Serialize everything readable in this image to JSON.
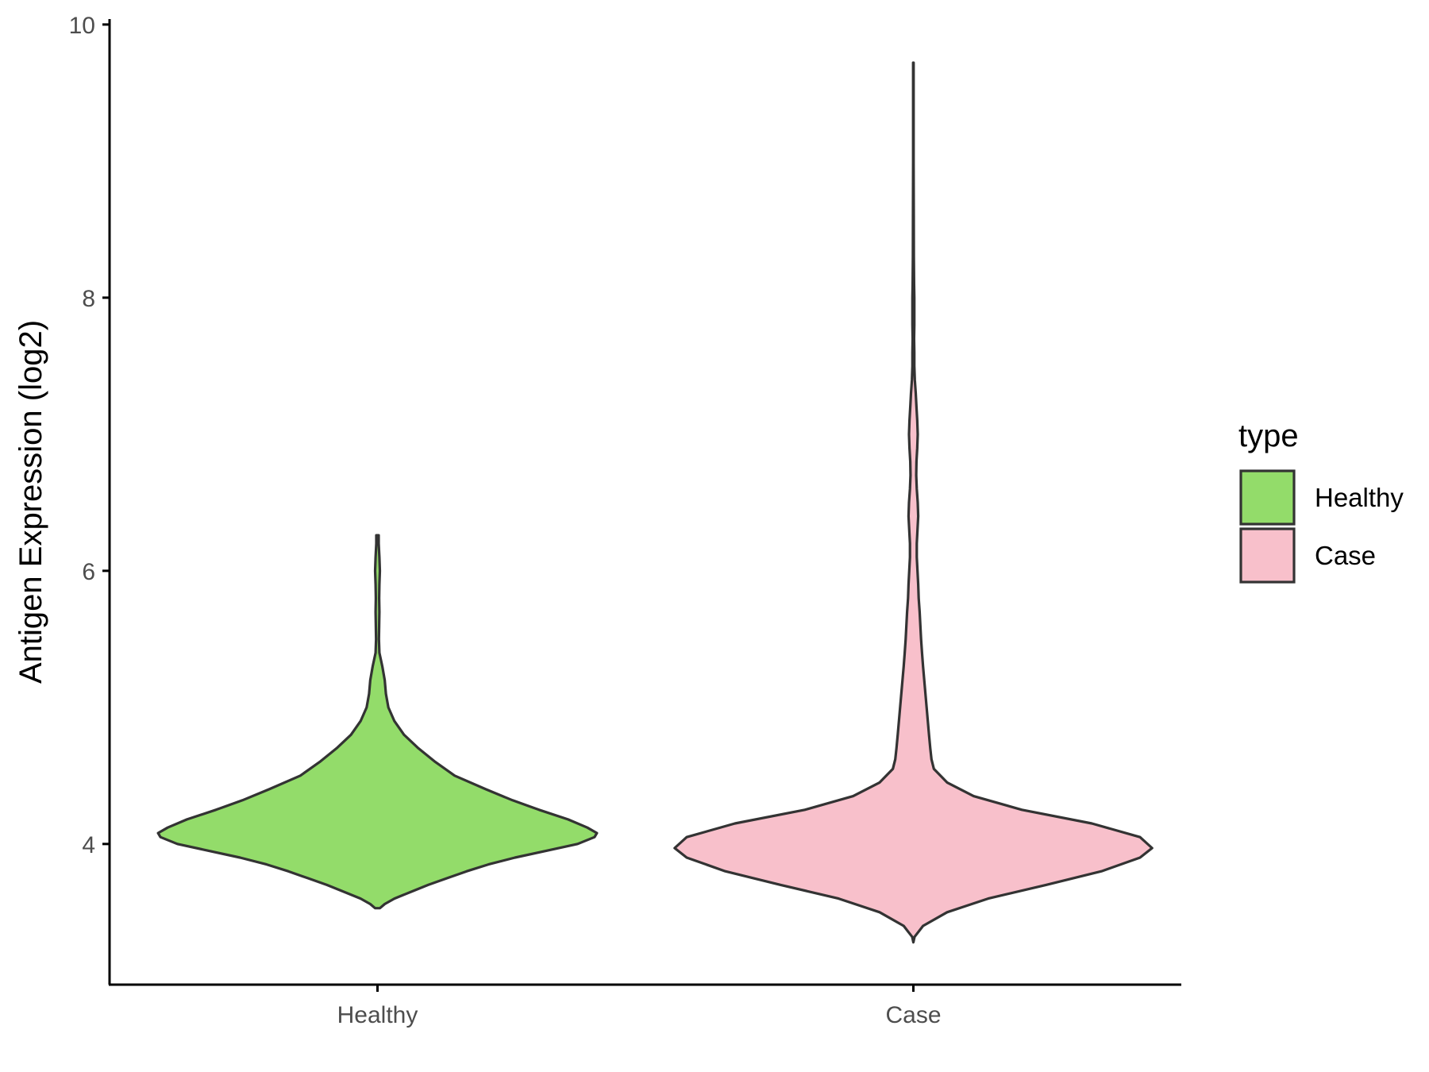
{
  "chart_data": {
    "type": "violin",
    "ylabel": "Antigen Expression (log2)",
    "xlabel": "",
    "categories": [
      "Healthy",
      "Case"
    ],
    "yticks": [
      4,
      6,
      8,
      10
    ],
    "ylim": [
      2.97,
      10.04
    ],
    "grid": false,
    "legend": {
      "title": "type",
      "position": "right",
      "entries": [
        {
          "label": "Healthy",
          "color": "#93DC6A"
        },
        {
          "label": "Case",
          "color": "#F8C0CB"
        }
      ]
    },
    "series": [
      {
        "category": "Healthy",
        "color": "#93DC6A",
        "density": [
          [
            3.53,
            0.01
          ],
          [
            3.56,
            0.03
          ],
          [
            3.6,
            0.07
          ],
          [
            3.65,
            0.14
          ],
          [
            3.7,
            0.21
          ],
          [
            3.75,
            0.29
          ],
          [
            3.8,
            0.37
          ],
          [
            3.85,
            0.46
          ],
          [
            3.9,
            0.57
          ],
          [
            3.95,
            0.7
          ],
          [
            4.0,
            0.83
          ],
          [
            4.05,
            0.9
          ],
          [
            4.08,
            0.91
          ],
          [
            4.12,
            0.87
          ],
          [
            4.18,
            0.79
          ],
          [
            4.25,
            0.67
          ],
          [
            4.32,
            0.56
          ],
          [
            4.4,
            0.45
          ],
          [
            4.5,
            0.32
          ],
          [
            4.6,
            0.24
          ],
          [
            4.7,
            0.17
          ],
          [
            4.8,
            0.11
          ],
          [
            4.9,
            0.07
          ],
          [
            5.0,
            0.045
          ],
          [
            5.1,
            0.035
          ],
          [
            5.2,
            0.03
          ],
          [
            5.3,
            0.02
          ],
          [
            5.4,
            0.008
          ],
          [
            5.5,
            0.006
          ],
          [
            5.6,
            0.007
          ],
          [
            5.7,
            0.008
          ],
          [
            5.8,
            0.007
          ],
          [
            5.9,
            0.008
          ],
          [
            6.0,
            0.01
          ],
          [
            6.1,
            0.008
          ],
          [
            6.2,
            0.005
          ],
          [
            6.26,
            0.005
          ]
        ]
      },
      {
        "category": "Case",
        "color": "#F8C0CB",
        "density": [
          [
            3.28,
            0.0
          ],
          [
            3.32,
            0.005
          ],
          [
            3.4,
            0.04
          ],
          [
            3.5,
            0.14
          ],
          [
            3.6,
            0.31
          ],
          [
            3.7,
            0.55
          ],
          [
            3.8,
            0.78
          ],
          [
            3.9,
            0.94
          ],
          [
            3.97,
            0.99
          ],
          [
            4.05,
            0.94
          ],
          [
            4.15,
            0.74
          ],
          [
            4.25,
            0.45
          ],
          [
            4.35,
            0.25
          ],
          [
            4.45,
            0.14
          ],
          [
            4.55,
            0.085
          ],
          [
            4.62,
            0.075
          ],
          [
            4.7,
            0.07
          ],
          [
            4.8,
            0.065
          ],
          [
            4.9,
            0.06
          ],
          [
            5.0,
            0.055
          ],
          [
            5.1,
            0.05
          ],
          [
            5.2,
            0.045
          ],
          [
            5.3,
            0.04
          ],
          [
            5.4,
            0.036
          ],
          [
            5.5,
            0.032
          ],
          [
            5.6,
            0.029
          ],
          [
            5.7,
            0.026
          ],
          [
            5.8,
            0.022
          ],
          [
            5.9,
            0.02
          ],
          [
            6.0,
            0.017
          ],
          [
            6.1,
            0.014
          ],
          [
            6.2,
            0.014
          ],
          [
            6.3,
            0.017
          ],
          [
            6.4,
            0.02
          ],
          [
            6.5,
            0.018
          ],
          [
            6.6,
            0.014
          ],
          [
            6.7,
            0.012
          ],
          [
            6.8,
            0.013
          ],
          [
            6.9,
            0.016
          ],
          [
            7.0,
            0.018
          ],
          [
            7.1,
            0.016
          ],
          [
            7.2,
            0.013
          ],
          [
            7.3,
            0.01
          ],
          [
            7.4,
            0.006
          ],
          [
            7.5,
            0.004
          ],
          [
            7.6,
            0.004
          ],
          [
            7.7,
            0.003
          ],
          [
            7.8,
            0.004
          ],
          [
            7.9,
            0.004
          ],
          [
            8.0,
            0.004
          ],
          [
            8.1,
            0.003
          ],
          [
            8.3,
            0.002
          ],
          [
            8.6,
            0.0015
          ],
          [
            9.0,
            0.001
          ],
          [
            9.4,
            0.001
          ],
          [
            9.72,
            0.001
          ]
        ]
      }
    ]
  }
}
